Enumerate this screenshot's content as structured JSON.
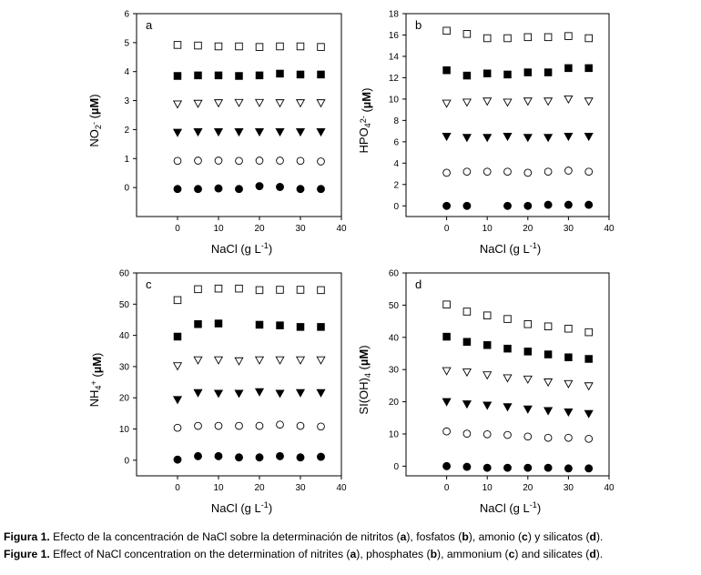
{
  "chart_data": [
    {
      "panel": "a",
      "type": "scatter",
      "xlabel": "NaCl (g L-1)",
      "ylabel": "NO2- (µM)",
      "xlim": [
        -10,
        40
      ],
      "ylim": [
        -1,
        6
      ],
      "xticks": [
        0,
        10,
        20,
        30,
        40
      ],
      "yticks": [
        0,
        1,
        2,
        3,
        4,
        5,
        6
      ],
      "x": [
        0,
        5,
        10,
        15,
        20,
        25,
        30,
        35
      ],
      "series": [
        {
          "marker": "open-square",
          "values": [
            4.92,
            4.9,
            4.87,
            4.87,
            4.85,
            4.87,
            4.87,
            4.85
          ]
        },
        {
          "marker": "filled-square",
          "values": [
            3.85,
            3.87,
            3.87,
            3.85,
            3.87,
            3.93,
            3.9,
            3.9
          ]
        },
        {
          "marker": "open-triangle-down",
          "values": [
            2.88,
            2.9,
            2.92,
            2.93,
            2.93,
            2.92,
            2.92,
            2.92
          ]
        },
        {
          "marker": "filled-triangle-down",
          "values": [
            1.9,
            1.92,
            1.92,
            1.92,
            1.92,
            1.92,
            1.92,
            1.92
          ]
        },
        {
          "marker": "open-circle",
          "values": [
            0.92,
            0.93,
            0.93,
            0.92,
            0.93,
            0.93,
            0.92,
            0.9
          ]
        },
        {
          "marker": "filled-circle",
          "values": [
            -0.05,
            -0.05,
            -0.03,
            -0.05,
            0.05,
            0.02,
            -0.05,
            -0.05
          ]
        }
      ]
    },
    {
      "panel": "b",
      "type": "scatter",
      "xlabel": "NaCl (g L-1)",
      "ylabel": "HPO42- (µM)",
      "xlim": [
        -10,
        40
      ],
      "ylim": [
        -1,
        18
      ],
      "xticks": [
        0,
        10,
        20,
        30,
        40
      ],
      "yticks": [
        0,
        2,
        4,
        6,
        8,
        10,
        12,
        14,
        16,
        18
      ],
      "x": [
        0,
        5,
        10,
        15,
        20,
        25,
        30,
        35
      ],
      "series": [
        {
          "marker": "open-square",
          "values": [
            16.4,
            16.1,
            15.7,
            15.7,
            15.8,
            15.8,
            15.9,
            15.7
          ]
        },
        {
          "marker": "filled-square",
          "values": [
            12.7,
            12.2,
            12.4,
            12.3,
            12.5,
            12.5,
            12.9,
            12.9
          ]
        },
        {
          "marker": "open-triangle-down",
          "values": [
            9.6,
            9.7,
            9.8,
            9.7,
            9.8,
            9.8,
            10.0,
            9.8
          ]
        },
        {
          "marker": "filled-triangle-down",
          "values": [
            6.5,
            6.4,
            6.4,
            6.5,
            6.4,
            6.4,
            6.5,
            6.5
          ]
        },
        {
          "marker": "open-circle",
          "values": [
            3.1,
            3.2,
            3.2,
            3.2,
            3.1,
            3.2,
            3.3,
            3.2
          ]
        },
        {
          "marker": "filled-circle",
          "values": [
            0.0,
            0.0,
            null,
            0.0,
            0.0,
            0.1,
            0.1,
            0.1
          ]
        }
      ]
    },
    {
      "panel": "c",
      "type": "scatter",
      "xlabel": "NaCl (g L-1)",
      "ylabel": "NH4+ (µM)",
      "xlim": [
        -10,
        40
      ],
      "ylim": [
        -5,
        60
      ],
      "xticks": [
        0,
        10,
        20,
        30,
        40
      ],
      "yticks": [
        0,
        10,
        20,
        30,
        40,
        50,
        60
      ],
      "x": [
        0,
        5,
        10,
        15,
        20,
        25,
        30,
        35
      ],
      "series": [
        {
          "marker": "open-square",
          "values": [
            51.3,
            54.8,
            55.0,
            55.0,
            54.5,
            54.6,
            54.6,
            54.5
          ]
        },
        {
          "marker": "filled-square",
          "values": [
            39.6,
            43.6,
            43.8,
            null,
            43.4,
            43.2,
            42.7,
            42.7
          ]
        },
        {
          "marker": "open-triangle-down",
          "values": [
            30.2,
            32.1,
            32.1,
            31.8,
            32.1,
            32.1,
            32.1,
            32.1
          ]
        },
        {
          "marker": "filled-triangle-down",
          "values": [
            19.4,
            21.6,
            21.4,
            21.4,
            21.9,
            21.4,
            21.6,
            21.6
          ]
        },
        {
          "marker": "open-circle",
          "values": [
            10.4,
            11.0,
            11.0,
            11.0,
            11.0,
            11.4,
            11.0,
            10.8
          ]
        },
        {
          "marker": "filled-circle",
          "values": [
            0.2,
            1.3,
            1.3,
            0.9,
            0.9,
            1.3,
            0.9,
            1.1
          ]
        }
      ]
    },
    {
      "panel": "d",
      "type": "scatter",
      "xlabel": "NaCl (g L-1)",
      "ylabel": "SI(OH)4 (µM)",
      "xlim": [
        -10,
        40
      ],
      "ylim": [
        -3,
        60
      ],
      "xticks": [
        0,
        10,
        20,
        30,
        40
      ],
      "yticks": [
        0,
        10,
        20,
        30,
        40,
        50,
        60
      ],
      "x": [
        0,
        5,
        10,
        15,
        20,
        25,
        30,
        35
      ],
      "series": [
        {
          "marker": "open-square",
          "values": [
            50.2,
            48.0,
            46.8,
            45.7,
            44.1,
            43.4,
            42.7,
            41.6
          ]
        },
        {
          "marker": "filled-square",
          "values": [
            40.2,
            38.6,
            37.6,
            36.5,
            35.6,
            34.7,
            33.8,
            33.3
          ]
        },
        {
          "marker": "open-triangle-down",
          "values": [
            29.6,
            29.2,
            28.3,
            27.4,
            27.0,
            26.1,
            25.6,
            24.9
          ]
        },
        {
          "marker": "filled-triangle-down",
          "values": [
            20.0,
            19.3,
            18.9,
            18.4,
            17.7,
            17.2,
            16.8,
            16.3
          ]
        },
        {
          "marker": "open-circle",
          "values": [
            10.8,
            10.1,
            9.9,
            9.7,
            9.2,
            8.8,
            8.8,
            8.5
          ]
        },
        {
          "marker": "filled-circle",
          "values": [
            0.0,
            -0.2,
            -0.5,
            -0.5,
            -0.5,
            -0.5,
            -0.7,
            -0.7
          ]
        }
      ]
    }
  ],
  "caption": {
    "es": {
      "label": "Figura 1.",
      "t1": " Efecto de la concentración de NaCl sobre la determinación de nitritos (",
      "b1": "a",
      "t2": "), fosfatos (",
      "b2": "b",
      "t3": "), amonio (",
      "b3": "c",
      "t4": ") y silicatos (",
      "b4": "d",
      "t5": ")."
    },
    "en": {
      "label": "Figure 1.",
      "t1": " Effect of NaCl concentration on the determination of nitrites (",
      "b1": "a",
      "t2": "), phosphates (",
      "b2": "b",
      "t3": "), ammonium (",
      "b3": "c",
      "t4": ") and silicates (",
      "b4": "d",
      "t5": ")."
    }
  }
}
